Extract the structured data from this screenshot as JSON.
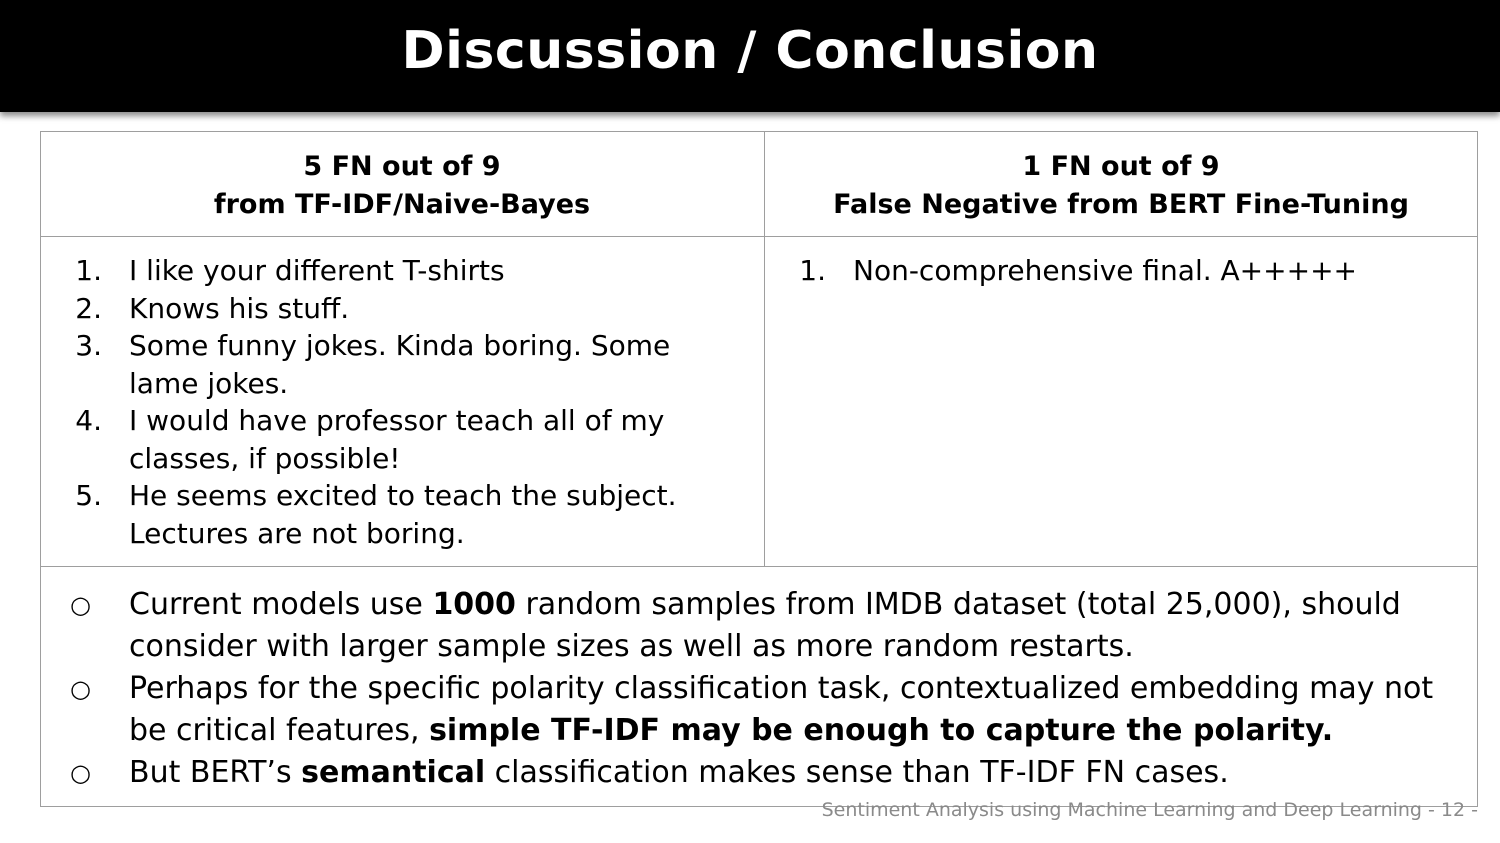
{
  "slide": {
    "title": "Discussion / Conclusion",
    "footer": "Sentiment Analysis using Machine Learning and Deep Learning  - 12 -"
  },
  "table": {
    "left": {
      "heading_line1": "5 FN out of 9",
      "heading_line2": "from TF-IDF/Naive-Bayes",
      "items": [
        {
          "num": "1.",
          "text": "I like your different T-shirts"
        },
        {
          "num": "2.",
          "text": "Knows his stuff."
        },
        {
          "num": "3.",
          "text": "Some funny jokes. Kinda boring. Some lame jokes."
        },
        {
          "num": "4.",
          "text": "I would have professor teach all of my classes, if possible!"
        },
        {
          "num": "5.",
          "text": "He seems excited to teach the subject. Lectures are not boring."
        }
      ]
    },
    "right": {
      "heading_line1": "1 FN out of 9",
      "heading_line2": "False Negative  from BERT Fine-Tuning",
      "items": [
        {
          "num": "1.",
          "text": "Non-comprehensive final. A+++++"
        }
      ]
    }
  },
  "notes": {
    "bullet_symbol": "○",
    "n1": {
      "pre": "Current models use ",
      "bold": "1000",
      "post": " random samples from IMDB dataset (total 25,000), should consider with larger sample sizes as well as more random restarts."
    },
    "n2": {
      "pre": "Perhaps for the specific polarity classification task, contextualized embedding may not be critical features, ",
      "bold": "simple TF-IDF may be enough to capture the polarity.",
      "post": ""
    },
    "n3": {
      "pre": "But BERT’s ",
      "bold": "semantical",
      "post": " classification makes sense than TF-IDF FN cases."
    }
  }
}
